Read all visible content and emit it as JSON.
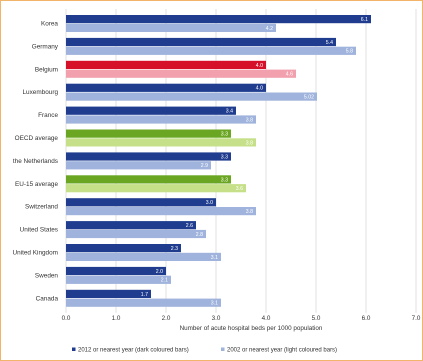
{
  "colors": {
    "dark_blue": "#1f3c8f",
    "light_blue": "#9fb3dc",
    "belgium_dark": "#d7102a",
    "belgium_light": "#f2a0ad",
    "oecd_dark": "#6aa621",
    "oecd_light": "#c6e08a",
    "grid": "#d9d9d9",
    "text": "#333333",
    "frame": "#f2b36b"
  },
  "chart_data": {
    "type": "bar",
    "orientation": "horizontal",
    "title": "",
    "xlabel": "Number of acute hospital beds per 1000 population",
    "ylabel": "",
    "xlim": [
      0,
      7
    ],
    "xticks": [
      "0.0",
      "1.0",
      "2.0",
      "3.0",
      "4.0",
      "5.0",
      "6.0",
      "7.0"
    ],
    "grid": true,
    "legend_position": "bottom",
    "categories": [
      "Korea",
      "Germany",
      "Belgium",
      "Luxembourg",
      "France",
      "OECD average",
      "the Netherlands",
      "EU-15 average",
      "Switzerland",
      "United States",
      "United Kingdom",
      "Sweden",
      "Canada"
    ],
    "highlight": {
      "Belgium": "belgium",
      "OECD average": "average",
      "EU-15 average": "average"
    },
    "series": [
      {
        "name": "2012 or nearest year (dark coloured bars)",
        "values": [
          6.1,
          5.4,
          4.0,
          4.0,
          3.4,
          3.3,
          3.3,
          3.3,
          3.0,
          2.6,
          2.3,
          2.0,
          1.7
        ],
        "labels": [
          "6.1",
          "5.4",
          "4.0",
          "4.0",
          "3.4",
          "3.3",
          "3.3",
          "3.3",
          "3.0",
          "2.6",
          "2.3",
          "2.0",
          "1.7"
        ]
      },
      {
        "name": "2002 or nearest year (light coloured bars)",
        "values": [
          4.2,
          5.8,
          4.6,
          5.02,
          3.8,
          3.8,
          2.9,
          3.6,
          3.8,
          2.8,
          3.1,
          2.1,
          3.1
        ],
        "labels": [
          "4.2",
          "5.8",
          "4.6",
          "5.02",
          "3.8",
          "3.8",
          "2.9",
          "3.6",
          "3.8",
          "2.8",
          "3.1",
          "2.1",
          "3.1"
        ]
      }
    ]
  }
}
